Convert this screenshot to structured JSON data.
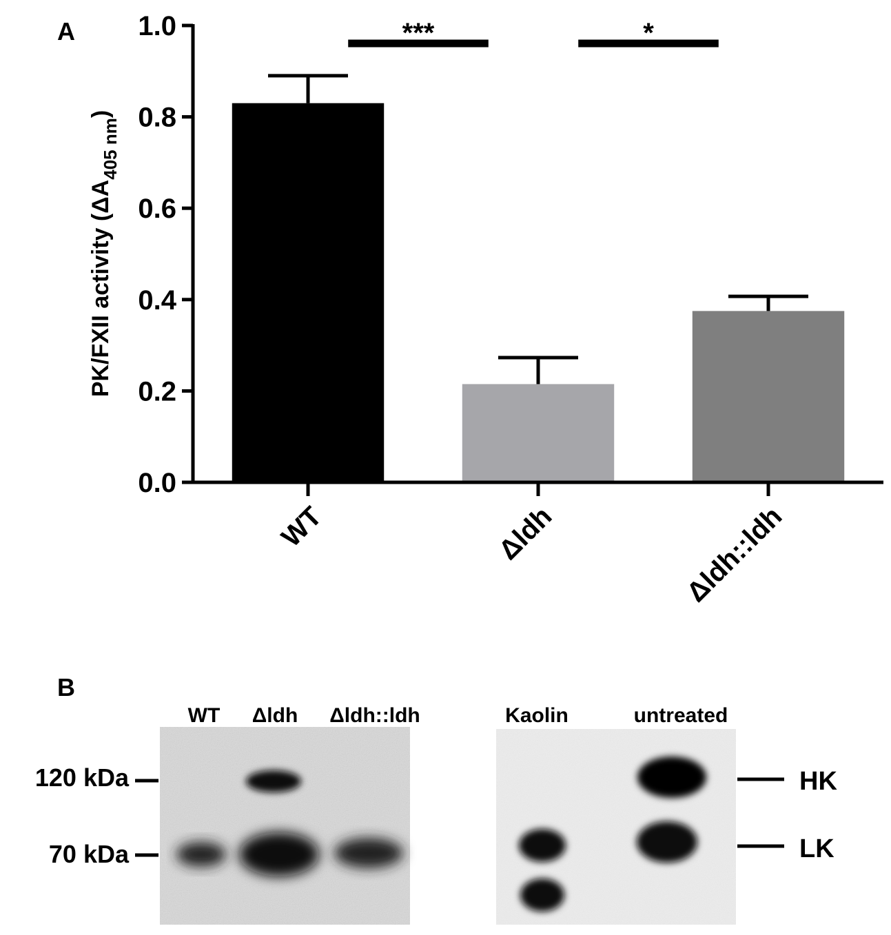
{
  "panel_a": {
    "letter": "A",
    "ylabel": "PK/FXII activity (ΔA",
    "ylabel_sub": "405 nm",
    "ylabel_close": ")",
    "significance": [
      {
        "label": "***",
        "from": 0,
        "to": 1
      },
      {
        "label": "*",
        "from": 1,
        "to": 2
      }
    ]
  },
  "chart_data": {
    "type": "bar",
    "categories": [
      "WT",
      "Δldh",
      "Δldh::ldh"
    ],
    "values": [
      0.83,
      0.215,
      0.375
    ],
    "errors": [
      0.06,
      0.058,
      0.032
    ],
    "colors": [
      "#000000",
      "#a6a6aa",
      "#7f7f7f"
    ],
    "ylim": [
      0,
      1.0
    ],
    "yticks": [
      "0.0",
      "0.2",
      "0.4",
      "0.6",
      "0.8",
      "1.0"
    ],
    "xlabel": "",
    "ylabel": "PK/FXII activity (ΔA405 nm)",
    "grid": false,
    "legend": "none"
  },
  "panel_b": {
    "letter": "B",
    "left_blot": {
      "lanes": [
        "WT",
        "Δldh",
        "Δldh::ldh"
      ],
      "markers": [
        "120 kDa",
        "70 kDa"
      ]
    },
    "right_blot": {
      "lanes": [
        "Kaolin",
        "untreated"
      ],
      "bands": [
        "HK",
        "LK"
      ]
    }
  }
}
